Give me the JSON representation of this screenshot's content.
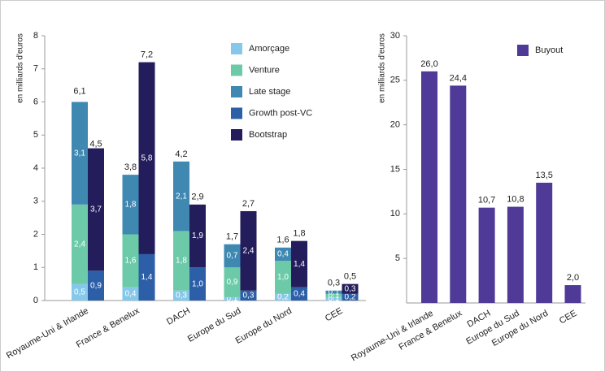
{
  "chart_data": [
    {
      "type": "stacked_grouped_bar",
      "y_label": "en milliards d'euros",
      "categories": [
        "Royaume-Uni & Irlande",
        "France & Benelux",
        "DACH",
        "Europe du Sud",
        "Europe du Nord",
        "CEE"
      ],
      "ylim": [
        0,
        8
      ],
      "yticks": [
        0,
        1,
        2,
        3,
        4,
        5,
        6,
        7,
        8
      ],
      "series": [
        {
          "name": "Amorçage",
          "color": "#86c8ea",
          "stack": 0,
          "values": [
            0.5,
            0.4,
            0.3,
            0.1,
            0.2,
            0.1
          ],
          "value_labels": [
            "0,5",
            "0,4",
            "0,3",
            "0,1",
            "0,2",
            "0,1"
          ]
        },
        {
          "name": "Venture",
          "color": "#6ccaa9",
          "stack": 0,
          "values": [
            2.4,
            1.6,
            1.8,
            0.9,
            1.0,
            0.1
          ],
          "value_labels": [
            "2,4",
            "1,6",
            "1,8",
            "0,9",
            "1,0",
            "0,1"
          ]
        },
        {
          "name": "Late stage",
          "color": "#3f88b2",
          "stack": 0,
          "values": [
            3.1,
            1.8,
            2.1,
            0.7,
            0.4,
            0.1
          ],
          "value_labels": [
            "3,1",
            "1,8",
            "2,1",
            "0,7",
            "0,4",
            "0,1"
          ]
        },
        {
          "name": "Growth post-VC",
          "color": "#2d5fa8",
          "stack": 1,
          "values": [
            0.9,
            1.4,
            1.0,
            0.3,
            0.4,
            0.2
          ],
          "value_labels": [
            "0,9",
            "1,4",
            "1,0",
            "0,3",
            "0,4",
            "0,2"
          ]
        },
        {
          "name": "Bootstrap",
          "color": "#241d5c",
          "stack": 1,
          "values": [
            3.7,
            5.8,
            1.9,
            2.4,
            1.4,
            0.3
          ],
          "value_labels": [
            "3,7",
            "5,8",
            "1,9",
            "2,4",
            "1,4",
            "0,3"
          ]
        }
      ],
      "totals": [
        {
          "values": [
            6.1,
            3.8,
            4.2,
            1.7,
            1.6,
            0.3
          ],
          "value_labels": [
            "6,1",
            "3,8",
            "4,2",
            "1,7",
            "1,6",
            "0,3"
          ]
        },
        {
          "values": [
            4.5,
            7.2,
            2.9,
            2.7,
            1.8,
            0.5
          ],
          "value_labels": [
            "4,5",
            "7,2",
            "2,9",
            "2,7",
            "1,8",
            "0,5"
          ]
        }
      ]
    },
    {
      "type": "bar",
      "y_label": "en milliards d'euros",
      "categories": [
        "Royaume-Uni & Irlande",
        "France & Benelux",
        "DACH",
        "Europe du Sud",
        "Europe du Nord",
        "CEE"
      ],
      "ylim": [
        0,
        30
      ],
      "yticks": [
        5,
        10,
        15,
        20,
        25,
        30
      ],
      "series": [
        {
          "name": "Buyout",
          "color": "#4f3b97",
          "values": [
            26.0,
            24.4,
            10.7,
            10.8,
            13.5,
            2.0
          ],
          "value_labels": [
            "26,0",
            "24,4",
            "10,7",
            "10,8",
            "13,5",
            "2,0"
          ]
        }
      ]
    }
  ]
}
